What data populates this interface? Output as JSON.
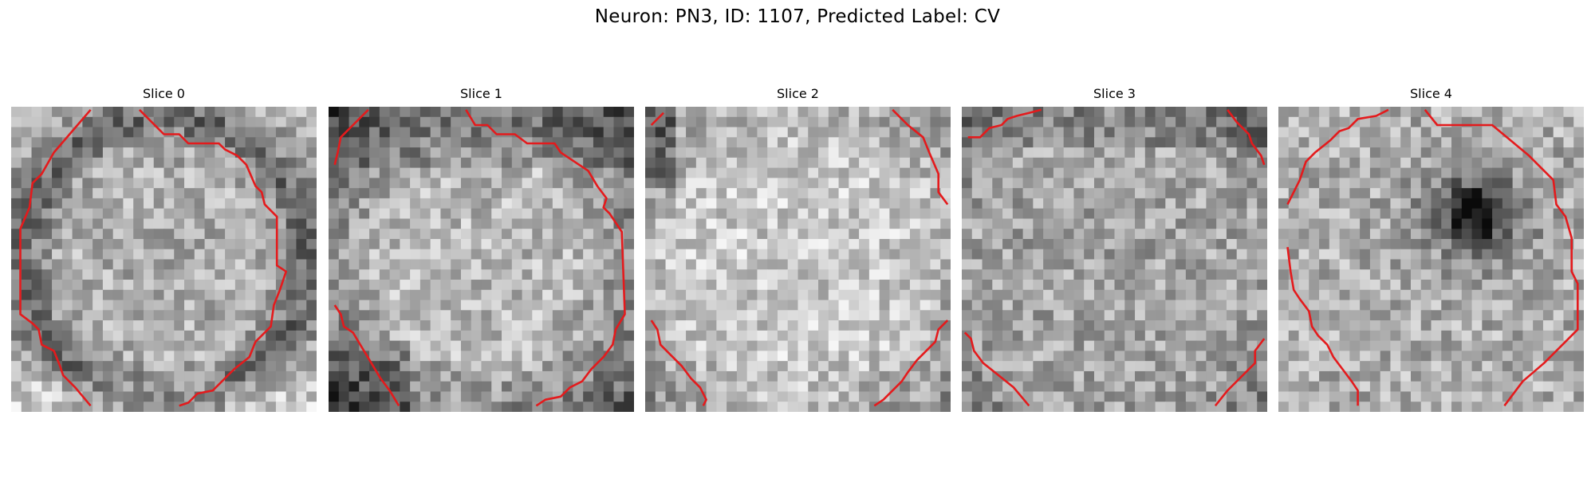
{
  "figure": {
    "title": "Neuron: PN3, ID: 1107, Predicted Label: CV"
  },
  "colors": {
    "contour": "#e41a1c",
    "background": "#ffffff"
  },
  "image_content": "grayscale noisy microscopy patches with red segmentation contours",
  "slices": [
    {
      "label": "Slice 0",
      "style": "dark-ring"
    },
    {
      "label": "Slice 1",
      "style": "bright-disc-dark-corners"
    },
    {
      "label": "Slice 2",
      "style": "bright-disc"
    },
    {
      "label": "Slice 3",
      "style": "mottled"
    },
    {
      "label": "Slice 4",
      "style": "dark-spot"
    }
  ]
}
